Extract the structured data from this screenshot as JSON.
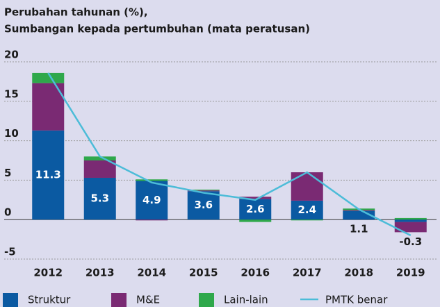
{
  "chart_data": {
    "type": "stacked_bar_line",
    "title": "Perubahan tahunan (%),",
    "subtitle": "Sumbangan kepada pertumbuhan (mata peratusan)",
    "categories": [
      "2012",
      "2013",
      "2014",
      "2015",
      "2016",
      "2017",
      "2018",
      "2019"
    ],
    "series": [
      {
        "name": "Struktur",
        "color": "#0b5aa2",
        "values": [
          11.3,
          5.3,
          4.9,
          3.6,
          2.6,
          2.4,
          1.1,
          -0.3
        ]
      },
      {
        "name": "M&E",
        "color": "#7a2a73",
        "values": [
          6.0,
          2.2,
          -0.1,
          0.1,
          0.3,
          3.6,
          0.1,
          -1.3
        ]
      },
      {
        "name": "Lain-lain",
        "color": "#2fa84b",
        "values": [
          1.3,
          0.5,
          0.2,
          0.1,
          -0.3,
          -0.1,
          0.2,
          0.2
        ]
      },
      {
        "name": "PMTK benar",
        "color": "#4cbcd8",
        "type": "line",
        "values": [
          18.6,
          8.0,
          4.7,
          3.4,
          2.5,
          6.0,
          1.3,
          -2.0
        ]
      }
    ],
    "ylim": [
      -6.5,
      21.5
    ],
    "yticks": [
      -5,
      0,
      5,
      10,
      15,
      20
    ],
    "grid": true,
    "legend": "bottom"
  }
}
